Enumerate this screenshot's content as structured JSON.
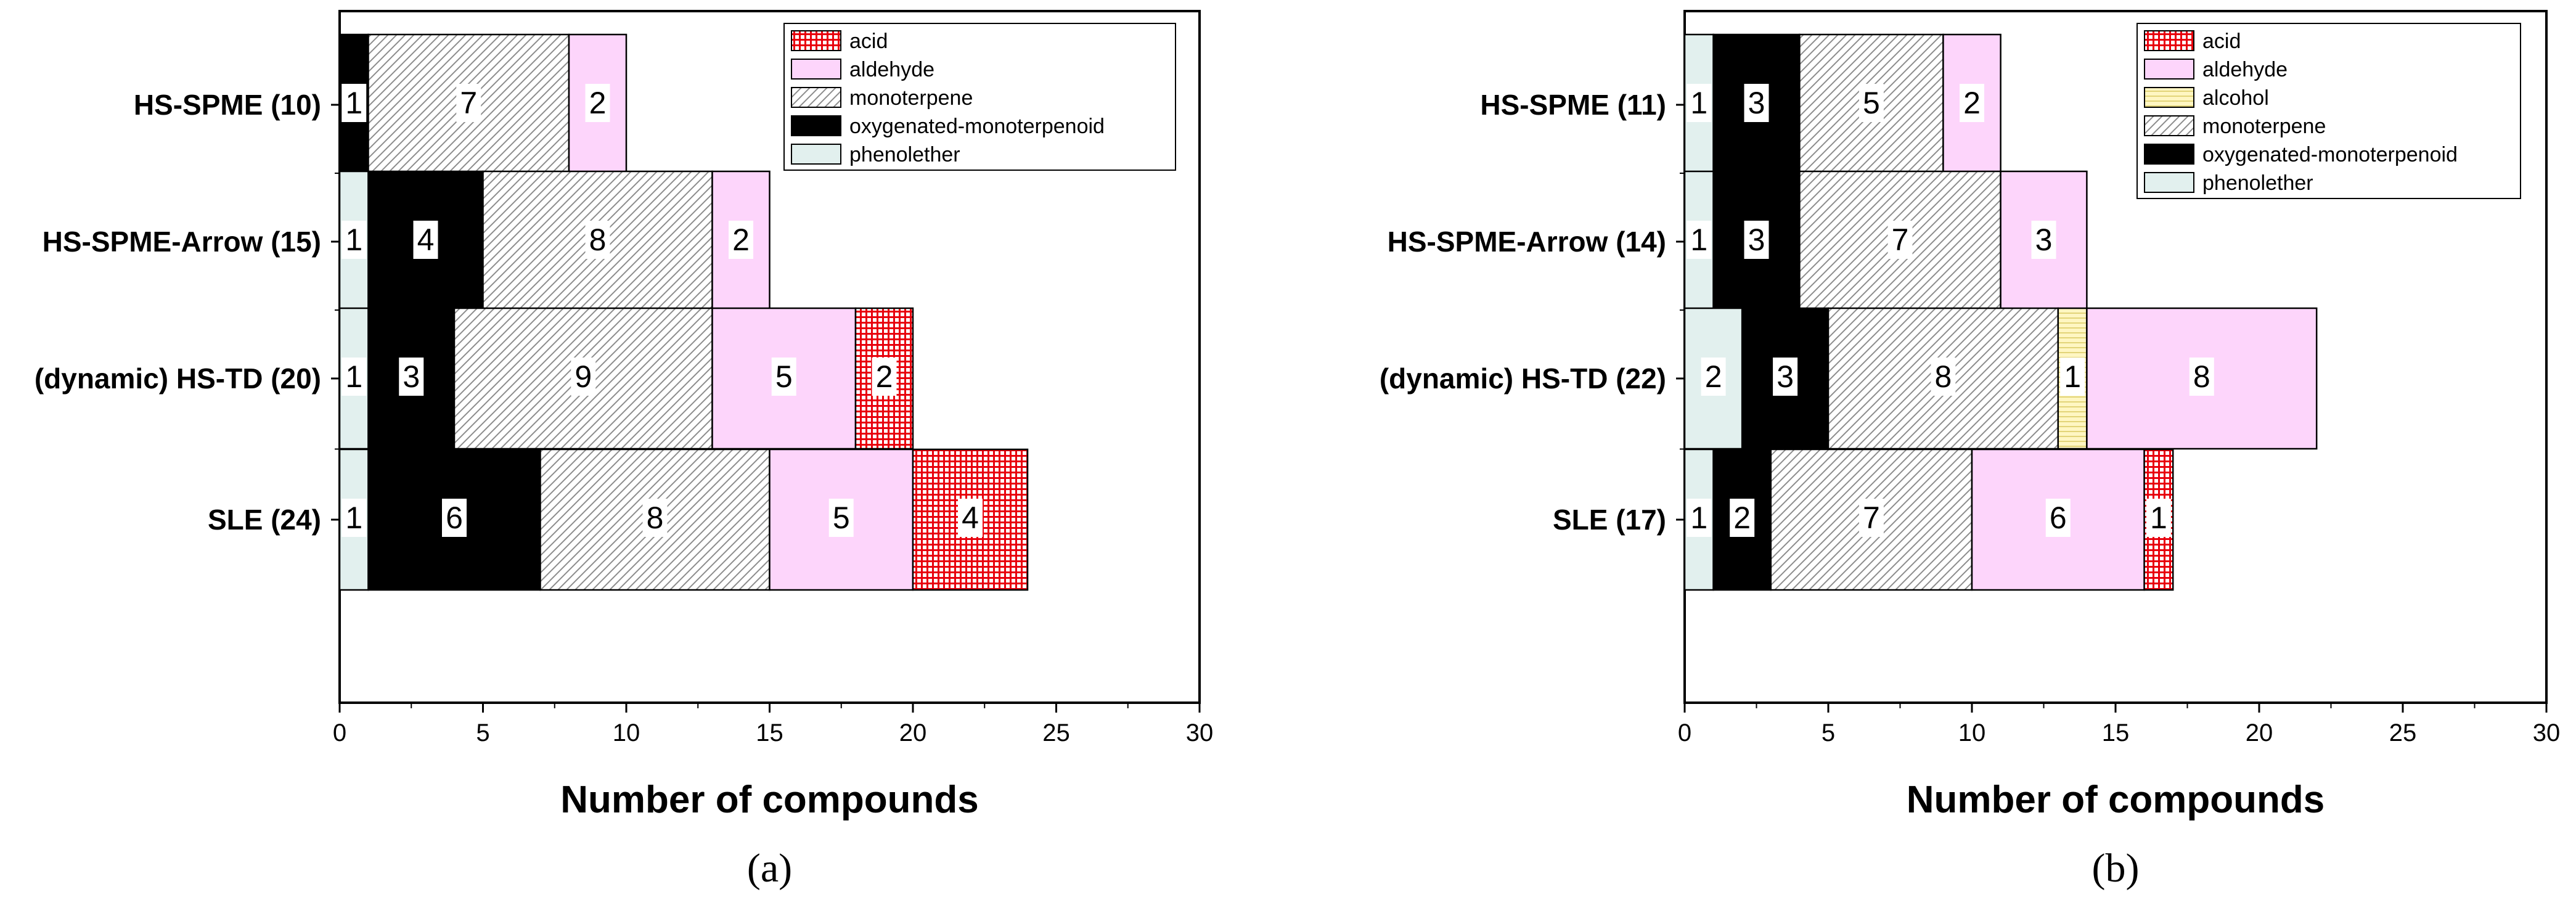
{
  "chart_data": [
    {
      "type": "bar",
      "orientation": "horizontal",
      "stacked": true,
      "panel_label": "(a)",
      "xlabel": "Number of compounds",
      "xlim": [
        0,
        30
      ],
      "xticks": [
        "0",
        "5",
        "10",
        "15",
        "20",
        "25",
        "30"
      ],
      "categories": [
        "HS-SPME (10)",
        "HS-SPME-Arrow (15)",
        "(dynamic) HS-TD (20)",
        "SLE (24)"
      ],
      "legend_position": "top-right",
      "series": [
        {
          "name": "phenolether",
          "key": "phenolether",
          "values": [
            0,
            1,
            1,
            1
          ],
          "labels": [
            "",
            "1",
            "1",
            "1"
          ]
        },
        {
          "name": "oxygenated-monoterpenoid",
          "key": "oxy",
          "values": [
            1,
            4,
            3,
            6
          ],
          "labels": [
            "1",
            "4",
            "3",
            "6"
          ]
        },
        {
          "name": "monoterpene",
          "key": "monoterpene",
          "values": [
            7,
            8,
            9,
            8
          ],
          "labels": [
            "7",
            "8",
            "9",
            "8"
          ]
        },
        {
          "name": "aldehyde",
          "key": "aldehyde",
          "values": [
            2,
            2,
            5,
            5
          ],
          "labels": [
            "2",
            "2",
            "5",
            "5"
          ]
        },
        {
          "name": "acid",
          "key": "acid",
          "values": [
            0,
            0,
            2,
            4
          ],
          "labels": [
            "",
            "",
            "2",
            "4"
          ]
        }
      ],
      "legend": [
        "acid",
        "aldehyde",
        "monoterpene",
        "oxygenated-monoterpenoid",
        "phenolether"
      ]
    },
    {
      "type": "bar",
      "orientation": "horizontal",
      "stacked": true,
      "panel_label": "(b)",
      "xlabel": "Number of compounds",
      "xlim": [
        0,
        30
      ],
      "xticks": [
        "0",
        "5",
        "10",
        "15",
        "20",
        "25",
        "30"
      ],
      "categories": [
        "HS-SPME (11)",
        "HS-SPME-Arrow (14)",
        "(dynamic) HS-TD (22)",
        "SLE (17)"
      ],
      "legend_position": "top-right",
      "series": [
        {
          "name": "phenolether",
          "key": "phenolether",
          "values": [
            1,
            1,
            2,
            1
          ],
          "labels": [
            "1",
            "1",
            "2",
            "1"
          ]
        },
        {
          "name": "oxygenated-monoterpenoid",
          "key": "oxy",
          "values": [
            3,
            3,
            3,
            2
          ],
          "labels": [
            "3",
            "3",
            "3",
            "2"
          ]
        },
        {
          "name": "monoterpene",
          "key": "monoterpene",
          "values": [
            5,
            7,
            8,
            7
          ],
          "labels": [
            "5",
            "7",
            "8",
            "7"
          ]
        },
        {
          "name": "alcohol",
          "key": "alcohol",
          "values": [
            0,
            0,
            1,
            0
          ],
          "labels": [
            "",
            "",
            "1",
            ""
          ]
        },
        {
          "name": "aldehyde",
          "key": "aldehyde",
          "values": [
            2,
            3,
            8,
            6
          ],
          "labels": [
            "2",
            "3",
            "8",
            "6"
          ]
        },
        {
          "name": "acid",
          "key": "acid",
          "values": [
            0,
            0,
            0,
            1
          ],
          "labels": [
            "",
            "",
            "",
            "1"
          ]
        }
      ],
      "legend": [
        "acid",
        "aldehyde",
        "alcohol",
        "monoterpene",
        "oxygenated-monoterpenoid",
        "phenolether"
      ]
    }
  ],
  "colors": {
    "phenolether": "#e2f0ee",
    "oxy": "#000000",
    "monoterpene_bg": "#ffffff",
    "monoterpene_hatch": "#8c8c8c",
    "aldehyde": "#fdd5fb",
    "alcohol_bg": "#fff6c2",
    "alcohol_line": "#d8c860",
    "acid_bg": "#ffffff",
    "acid_grid": "#e8000d"
  }
}
